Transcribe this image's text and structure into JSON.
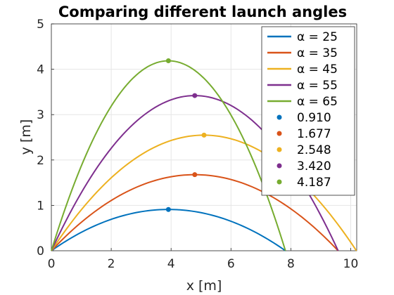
{
  "chart_data": {
    "type": "line",
    "title": "Comparing different launch angles",
    "xlabel": "x [m]",
    "ylabel": "y [m]",
    "xlim": [
      0,
      10.2
    ],
    "ylim": [
      0,
      5
    ],
    "xticks": [
      "0",
      "2",
      "4",
      "6",
      "8",
      "10"
    ],
    "yticks": [
      "0",
      "1",
      "2",
      "3",
      "4",
      "5"
    ],
    "grid": true,
    "legend_position": "top-right",
    "series": [
      {
        "name": "α = 25",
        "color": "#0072BD",
        "range": 7.82,
        "peak_x": 3.91,
        "peak_y": 0.91
      },
      {
        "name": "α = 35",
        "color": "#D95319",
        "range": 9.58,
        "peak_x": 4.79,
        "peak_y": 1.677
      },
      {
        "name": "α = 45",
        "color": "#EDB120",
        "range": 10.19,
        "peak_x": 5.1,
        "peak_y": 2.548
      },
      {
        "name": "α = 55",
        "color": "#7E2F8E",
        "range": 9.58,
        "peak_x": 4.79,
        "peak_y": 3.42
      },
      {
        "name": "α = 65",
        "color": "#77AC30",
        "range": 7.82,
        "peak_x": 3.91,
        "peak_y": 4.187
      }
    ],
    "peak_markers": [
      {
        "name": "0.910",
        "x": 3.91,
        "y": 0.91,
        "color": "#0072BD"
      },
      {
        "name": "1.677",
        "x": 4.79,
        "y": 1.677,
        "color": "#D95319"
      },
      {
        "name": "2.548",
        "x": 5.1,
        "y": 2.548,
        "color": "#EDB120"
      },
      {
        "name": "3.420",
        "x": 4.79,
        "y": 3.42,
        "color": "#7E2F8E"
      },
      {
        "name": "4.187",
        "x": 3.91,
        "y": 4.187,
        "color": "#77AC30"
      }
    ]
  }
}
